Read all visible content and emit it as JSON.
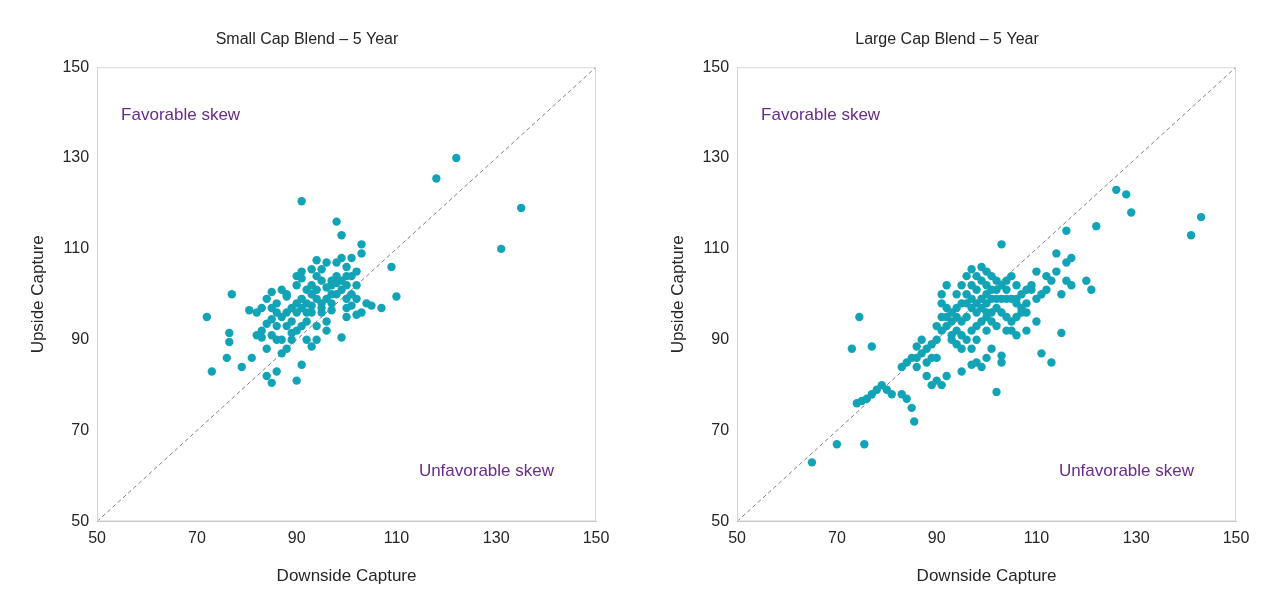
{
  "chart_data": [
    {
      "type": "scatter",
      "title": "Small Cap Blend – 5 Year",
      "x_label": "Downside Capture",
      "y_label": "Upside Capture",
      "xlim": [
        50,
        150
      ],
      "xticks": [
        50,
        70,
        90,
        110,
        130,
        150
      ],
      "ylim": [
        50,
        150
      ],
      "yticks": [
        50,
        70,
        90,
        110,
        130,
        150
      ],
      "grid": false,
      "annotations": [
        {
          "text": "Favorable skew"
        },
        {
          "text": "Unfavorable skew"
        }
      ],
      "series": [
        {
          "type": "line",
          "line_style": "dashed",
          "color": "#808080",
          "x": [
            50,
            150
          ],
          "values": [
            50,
            150
          ]
        },
        {
          "type": "scatter",
          "marker": "circle",
          "color": "#12a4b6",
          "x": [
            91,
            118,
            122,
            131,
            135,
            72,
            73,
            77,
            76.5,
            76.5,
            76,
            79,
            81,
            80.5,
            82,
            83,
            84,
            84,
            85,
            86,
            85,
            86,
            87,
            88,
            89,
            90,
            91,
            93,
            94,
            99,
            98,
            99,
            101,
            103,
            103,
            109,
            110,
            107,
            105,
            103,
            102,
            104,
            100,
            97,
            97,
            95,
            94,
            92,
            91,
            90,
            89,
            88,
            87,
            86,
            85,
            84,
            85,
            86,
            88,
            90,
            90,
            91,
            92,
            93,
            94,
            95,
            96,
            97,
            98,
            99,
            100,
            101,
            101,
            99,
            98,
            96,
            95,
            93,
            92,
            91,
            90,
            89,
            88,
            87,
            86,
            85,
            84,
            83,
            82,
            83,
            89,
            90,
            91,
            93,
            94,
            96,
            97,
            98,
            99,
            100,
            102,
            100,
            96,
            95,
            93,
            92,
            88,
            87,
            93,
            91,
            95,
            100,
            102,
            96,
            94,
            97,
            92,
            100,
            98,
            94,
            101,
            102
          ],
          "values": [
            120.5,
            125.5,
            130,
            110,
            119,
            95,
            83,
            100,
            91.5,
            89.5,
            86,
            84,
            86,
            96.5,
            96,
            97,
            88,
            82,
            80.5,
            83,
            91,
            90,
            87,
            88,
            90,
            81,
            84.5,
            88.5,
            90,
            90.5,
            116,
            113,
            108,
            111,
            109,
            106,
            99.5,
            97,
            97.5,
            96,
            95.5,
            98,
            99,
            96.5,
            100,
            97,
            99,
            98,
            97,
            96,
            94,
            93,
            95,
            96,
            97,
            99,
            100.5,
            98,
            99.5,
            102,
            104,
            103.5,
            101,
            102,
            104,
            105.5,
            107,
            103,
            104,
            108,
            106,
            104,
            100,
            101,
            100,
            99,
            98,
            96,
            94,
            93,
            92,
            91.5,
            96,
            90,
            93,
            94.5,
            93.5,
            92,
            91,
            90.5,
            97,
            98,
            99,
            100,
            101,
            101.5,
            102,
            102.5,
            103,
            102,
            102,
            97,
            94,
            96,
            97.5,
            96,
            100,
            101,
            105.5,
            105,
            103,
            104,
            105,
            92,
            93,
            98,
            90,
            95,
            107,
            107.5,
            97.5,
            99
          ]
        }
      ]
    },
    {
      "type": "scatter",
      "title": "Large Cap Blend – 5 Year",
      "x_label": "Downside Capture",
      "y_label": "Upside Capture",
      "xlim": [
        50,
        150
      ],
      "xticks": [
        50,
        70,
        90,
        110,
        130,
        150
      ],
      "ylim": [
        50,
        150
      ],
      "yticks": [
        50,
        70,
        90,
        110,
        130,
        150
      ],
      "grid": false,
      "annotations": [
        {
          "text": "Favorable skew"
        },
        {
          "text": "Unfavorable skew"
        }
      ],
      "series": [
        {
          "type": "line",
          "line_style": "dashed",
          "color": "#808080",
          "x": [
            50,
            150
          ],
          "values": [
            50,
            150
          ]
        },
        {
          "type": "scatter",
          "marker": "circle",
          "color": "#12a4b6",
          "x": [
            65,
            70,
            75.5,
            73,
            74.5,
            77,
            74,
            75,
            76,
            77,
            78,
            79,
            80,
            81,
            83,
            84,
            85,
            85.5,
            83,
            84,
            85,
            86,
            86,
            87,
            88,
            89,
            90,
            88,
            89,
            90,
            91,
            92,
            91,
            92,
            91,
            92,
            93,
            93,
            94,
            95,
            95,
            97,
            98,
            99,
            100,
            101,
            102,
            103,
            103,
            103,
            104,
            105,
            106,
            107,
            108,
            109,
            110,
            108,
            106,
            111,
            113,
            113,
            114,
            114,
            116,
            116,
            117,
            116,
            117,
            115,
            115,
            120,
            121,
            122,
            126,
            128,
            129,
            141,
            143,
            110,
            112,
            106,
            104,
            102,
            101,
            100,
            99,
            98,
            97,
            96,
            95,
            94,
            93,
            92,
            91,
            94,
            95,
            96,
            97,
            98,
            99,
            100,
            101,
            102,
            103,
            104,
            105,
            100,
            99,
            98,
            97,
            96,
            95,
            94,
            93,
            97,
            98,
            100,
            101,
            102,
            104,
            105,
            106,
            107,
            108,
            109,
            107,
            103,
            102,
            100,
            99,
            98,
            97,
            96,
            94,
            92,
            91,
            90,
            90,
            89,
            88,
            87,
            86,
            99,
            100,
            101,
            96,
            95,
            103,
            104,
            105,
            106,
            108,
            110,
            111,
            112,
            97,
            98,
            101,
            102,
            100
          ],
          "values": [
            63,
            67,
            67,
            88,
            95,
            88.5,
            76,
            76.5,
            77,
            78,
            79,
            80,
            79,
            78,
            78,
            77,
            75,
            72,
            84,
            85,
            86,
            84,
            88.5,
            87,
            85,
            86,
            86,
            82,
            80,
            81,
            80,
            82,
            92,
            95,
            98,
            102,
            94,
            91,
            89,
            88,
            83,
            84.5,
            85,
            84,
            86,
            88,
            78.5,
            85,
            86.5,
            111,
            103,
            104,
            98,
            96,
            98,
            101,
            94,
            92,
            91,
            87,
            85,
            103,
            109,
            105,
            114,
            107,
            108,
            103,
            102,
            100,
            91.5,
            103,
            101,
            115,
            123,
            122,
            118,
            113,
            117,
            105,
            104,
            102,
            99,
            101,
            104,
            105,
            106,
            104,
            102,
            100,
            98,
            97,
            96,
            97,
            100,
            100,
            102,
            104,
            105.5,
            101,
            99,
            100,
            99,
            97,
            96,
            95,
            94,
            96,
            94,
            93,
            92,
            95,
            94,
            92,
            90,
            88,
            90,
            92,
            94,
            93,
            92,
            92,
            95,
            100,
            101,
            102,
            97,
            102,
            103,
            102,
            103,
            98,
            97,
            98,
            95,
            93,
            95,
            93,
            90,
            89,
            88,
            90,
            86,
            97,
            98,
            101,
            90,
            91,
            99,
            101,
            99,
            99,
            96,
            99,
            100,
            101,
            99,
            96,
            96,
            99,
            95
          ]
        }
      ]
    }
  ]
}
